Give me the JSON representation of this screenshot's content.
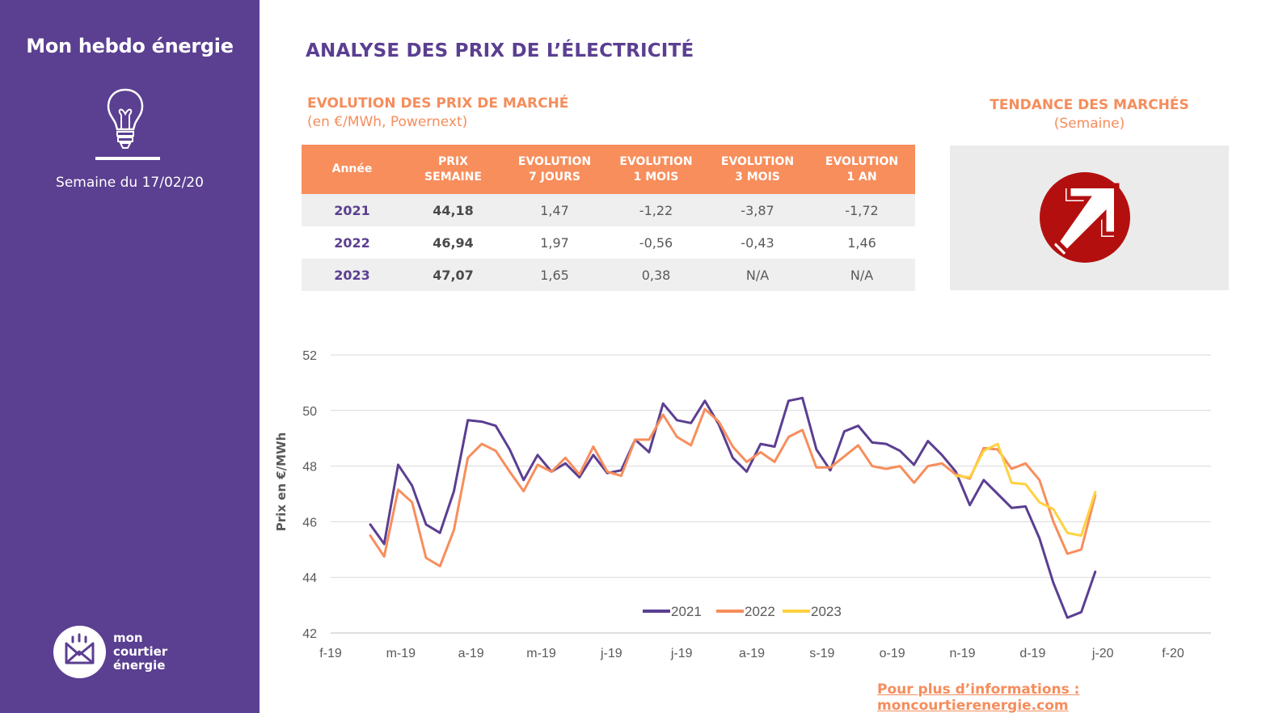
{
  "sidebar": {
    "title": "Mon hebdo énergie",
    "week": "Semaine du 17/02/20",
    "logo_lines": [
      "mon",
      "courtier",
      "énergie"
    ],
    "icons": [
      "lightbulb-icon",
      "logo-envelope-icon"
    ]
  },
  "header": {
    "title": "ANALYSE DES PRIX DE L’ÉLECTRICITÉ",
    "subtitle": "EVOLUTION DES PRIX DE MARCHÉ",
    "unit": "(en €/MWh, Powernext)"
  },
  "table": {
    "headers": [
      [
        "Année"
      ],
      [
        "PRIX",
        "SEMAINE"
      ],
      [
        "EVOLUTION",
        "7 JOURS"
      ],
      [
        "EVOLUTION",
        "1 MOIS"
      ],
      [
        "EVOLUTION",
        "3 MOIS"
      ],
      [
        "EVOLUTION",
        "1 AN"
      ]
    ],
    "rows": [
      [
        "2021",
        "44,18",
        "1,47",
        "-1,22",
        "-3,87",
        "-1,72"
      ],
      [
        "2022",
        "46,94",
        "1,97",
        "-0,56",
        "-0,43",
        "1,46"
      ],
      [
        "2023",
        "47,07",
        "1,65",
        "0,38",
        "N/A",
        "N/A"
      ]
    ]
  },
  "trend": {
    "title": "TENDANCE DES MARCHÉS",
    "subtitle": "(Semaine)",
    "direction": "up",
    "icon": "trend-up-arrow-icon",
    "color": "#b30f0f"
  },
  "footer": {
    "link": "Pour plus d’informations : moncourtierenergie.com"
  },
  "colors": {
    "purple": "#5b3f91",
    "orange": "#f78e5c",
    "yellow": "#ffd23f"
  },
  "chart_data": {
    "type": "line",
    "ylabel": "Prix en €/MWh",
    "ylim": [
      42,
      52
    ],
    "yticks": [
      42,
      44,
      46,
      48,
      50,
      52
    ],
    "xtick_labels": [
      "f-19",
      "m-19",
      "a-19",
      "m-19",
      "j-19",
      "j-19",
      "a-19",
      "s-19",
      "o-19",
      "n-19",
      "d-19",
      "j-20",
      "f-20"
    ],
    "grid": true,
    "legend": "bottom-center",
    "series": [
      {
        "name": "2021",
        "color": "#5b3f91",
        "values": [
          45.9,
          45.2,
          48.05,
          47.3,
          45.9,
          45.6,
          47.1,
          49.65,
          49.6,
          49.45,
          48.6,
          47.5,
          48.4,
          47.8,
          48.1,
          47.6,
          48.4,
          47.75,
          47.85,
          48.95,
          48.5,
          50.25,
          49.65,
          49.55,
          50.35,
          49.5,
          48.3,
          47.8,
          48.8,
          48.7,
          50.35,
          50.45,
          48.6,
          47.85,
          49.25,
          49.45,
          48.85,
          48.8,
          48.55,
          48.05,
          48.9,
          48.4,
          47.8,
          46.6,
          47.5,
          47.0,
          46.5,
          46.55,
          45.4,
          43.8,
          42.55,
          42.75,
          44.2
        ]
      },
      {
        "name": "2022",
        "color": "#f78e5c",
        "values": [
          45.5,
          44.75,
          47.15,
          46.7,
          44.7,
          44.4,
          45.7,
          48.3,
          48.8,
          48.55,
          47.8,
          47.1,
          48.05,
          47.8,
          48.3,
          47.7,
          48.7,
          47.8,
          47.65,
          48.95,
          48.95,
          49.85,
          49.05,
          48.75,
          50.05,
          49.6,
          48.7,
          48.15,
          48.5,
          48.15,
          49.05,
          49.3,
          47.95,
          47.95,
          48.35,
          48.75,
          48.0,
          47.9,
          48.0,
          47.4,
          48.0,
          48.1,
          47.7,
          47.55,
          48.65,
          48.6,
          47.9,
          48.1,
          47.5,
          46.0,
          44.85,
          45.0,
          46.95
        ]
      },
      {
        "name": "2023",
        "color": "#ffd23f",
        "values": [
          null,
          null,
          null,
          null,
          null,
          null,
          null,
          null,
          null,
          null,
          null,
          null,
          null,
          null,
          null,
          null,
          null,
          null,
          null,
          null,
          null,
          null,
          null,
          null,
          null,
          null,
          null,
          null,
          null,
          null,
          null,
          null,
          null,
          null,
          null,
          null,
          null,
          null,
          null,
          null,
          null,
          null,
          47.65,
          47.6,
          48.55,
          48.8,
          47.4,
          47.35,
          46.7,
          46.45,
          45.6,
          45.5,
          47.07
        ]
      }
    ]
  }
}
